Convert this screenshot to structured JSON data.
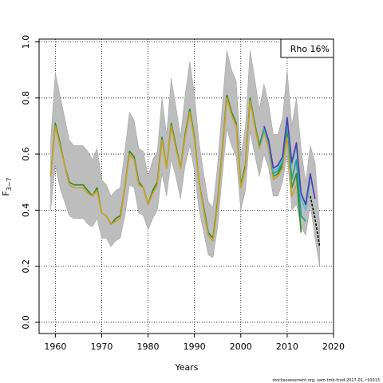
{
  "chart_data": {
    "type": "line",
    "title": "",
    "xlabel": "Years",
    "ylabel": "F",
    "ylabel_subscript": "3−7",
    "xlim": [
      1956.5,
      2020
    ],
    "ylim": [
      -0.04,
      1.01
    ],
    "xticks": [
      1960,
      1970,
      1980,
      1990,
      2000,
      2010,
      2020
    ],
    "yticks": [
      0.0,
      0.2,
      0.4,
      0.6,
      0.8,
      1.0
    ],
    "xtick_labels": [
      "1960",
      "1970",
      "1980",
      "1990",
      "2000",
      "2010",
      "2020"
    ],
    "ytick_labels": [
      "0.0",
      "0.2",
      "0.4",
      "0.6",
      "0.8",
      "1.0"
    ],
    "grid": true,
    "legend": {
      "placement": "top-right",
      "text": "Rho 16%"
    },
    "footer": "stockassessment.org, sam-tmb-fcod-2017-01, r10013",
    "band": {
      "x": [
        1959,
        1960,
        1961,
        1962,
        1963,
        1964,
        1965,
        1966,
        1967,
        1968,
        1969,
        1970,
        1971,
        1972,
        1973,
        1974,
        1975,
        1976,
        1977,
        1978,
        1979,
        1980,
        1981,
        1982,
        1983,
        1984,
        1985,
        1986,
        1987,
        1988,
        1989,
        1990,
        1991,
        1992,
        1993,
        1994,
        1995,
        1996,
        1997,
        1998,
        1999,
        2000,
        2001,
        2002,
        2003,
        2004,
        2005,
        2006,
        2007,
        2008,
        2009,
        2010,
        2011,
        2012,
        2013,
        2014,
        2015,
        2016,
        2017
      ],
      "upper": [
        0.65,
        0.89,
        0.81,
        0.73,
        0.65,
        0.63,
        0.63,
        0.63,
        0.61,
        0.58,
        0.62,
        0.51,
        0.49,
        0.45,
        0.47,
        0.48,
        0.61,
        0.75,
        0.72,
        0.62,
        0.61,
        0.52,
        0.58,
        0.61,
        0.8,
        0.67,
        0.87,
        0.77,
        0.66,
        0.81,
        0.93,
        0.81,
        0.64,
        0.53,
        0.43,
        0.41,
        0.56,
        0.77,
        0.97,
        0.9,
        0.86,
        0.59,
        0.7,
        0.97,
        0.87,
        0.76,
        0.85,
        0.78,
        0.67,
        0.67,
        0.73,
        0.9,
        0.7,
        0.8,
        0.62,
        0.5,
        0.63,
        0.57,
        0.35
      ],
      "lower": [
        0.4,
        0.56,
        0.48,
        0.43,
        0.38,
        0.37,
        0.37,
        0.37,
        0.35,
        0.34,
        0.37,
        0.3,
        0.3,
        0.27,
        0.29,
        0.3,
        0.38,
        0.49,
        0.48,
        0.39,
        0.38,
        0.33,
        0.37,
        0.4,
        0.53,
        0.45,
        0.58,
        0.52,
        0.44,
        0.56,
        0.63,
        0.54,
        0.4,
        0.32,
        0.24,
        0.23,
        0.34,
        0.52,
        0.69,
        0.63,
        0.59,
        0.4,
        0.47,
        0.68,
        0.6,
        0.52,
        0.6,
        0.55,
        0.45,
        0.45,
        0.5,
        0.6,
        0.4,
        0.42,
        0.34,
        0.31,
        0.42,
        0.3,
        0.2
      ]
    },
    "series": [
      {
        "color": "#2e8b2e",
        "x": [
          1959,
          1960,
          1961,
          1962,
          1963,
          1964,
          1965,
          1966,
          1967,
          1968,
          1969,
          1970,
          1971,
          1972,
          1973,
          1974,
          1975,
          1976,
          1977,
          1978,
          1979,
          1980,
          1981,
          1982,
          1983,
          1984,
          1985,
          1986,
          1987,
          1988,
          1989,
          1990,
          1991,
          1992,
          1993,
          1994,
          1995,
          1996,
          1997,
          1998,
          1999,
          2000,
          2001,
          2002,
          2003,
          2004,
          2005,
          2006,
          2007,
          2008,
          2009,
          2010,
          2011,
          2012,
          2013
        ],
        "values": [
          0.52,
          0.71,
          0.64,
          0.56,
          0.5,
          0.49,
          0.49,
          0.49,
          0.47,
          0.45,
          0.48,
          0.39,
          0.38,
          0.35,
          0.37,
          0.38,
          0.48,
          0.61,
          0.59,
          0.5,
          0.48,
          0.42,
          0.47,
          0.5,
          0.66,
          0.55,
          0.71,
          0.63,
          0.55,
          0.67,
          0.76,
          0.66,
          0.5,
          0.41,
          0.32,
          0.3,
          0.43,
          0.61,
          0.81,
          0.75,
          0.71,
          0.49,
          0.56,
          0.8,
          0.71,
          0.63,
          0.69,
          0.63,
          0.52,
          0.53,
          0.56,
          0.68,
          0.48,
          0.53,
          0.32
        ]
      },
      {
        "color": "#c9a227",
        "x": [
          1959,
          1960,
          1961,
          1962,
          1963,
          1964,
          1965,
          1966,
          1967,
          1968,
          1969,
          1970,
          1971,
          1972,
          1973,
          1974,
          1975,
          1976,
          1977,
          1978,
          1979,
          1980,
          1981,
          1982,
          1983,
          1984,
          1985,
          1986,
          1987,
          1988,
          1989,
          1990,
          1991,
          1992,
          1993,
          1994,
          1995,
          1996,
          1997,
          1998,
          1999,
          2000,
          2001,
          2002,
          2003,
          2004,
          2005,
          2006,
          2007,
          2008,
          2009,
          2010,
          2011,
          2012
        ],
        "values": [
          0.52,
          0.7,
          0.63,
          0.56,
          0.49,
          0.48,
          0.48,
          0.48,
          0.46,
          0.45,
          0.47,
          0.39,
          0.38,
          0.35,
          0.36,
          0.37,
          0.48,
          0.6,
          0.58,
          0.49,
          0.48,
          0.42,
          0.46,
          0.49,
          0.65,
          0.55,
          0.7,
          0.62,
          0.55,
          0.66,
          0.75,
          0.65,
          0.5,
          0.4,
          0.31,
          0.29,
          0.42,
          0.6,
          0.8,
          0.74,
          0.7,
          0.48,
          0.55,
          0.79,
          0.7,
          0.62,
          0.68,
          0.62,
          0.51,
          0.52,
          0.55,
          0.66,
          0.45,
          0.49
        ]
      },
      {
        "color": "#1a9e8f",
        "x": [
          2004,
          2005,
          2006,
          2007,
          2008,
          2009,
          2010,
          2011,
          2012,
          2013,
          2014
        ],
        "values": [
          0.63,
          0.69,
          0.64,
          0.53,
          0.54,
          0.57,
          0.71,
          0.51,
          0.58,
          0.38,
          0.36
        ]
      },
      {
        "color": "#5fb8d6",
        "x": [
          2005,
          2006,
          2007,
          2008,
          2009,
          2010,
          2011,
          2012,
          2013,
          2014,
          2015
        ],
        "values": [
          0.69,
          0.64,
          0.54,
          0.55,
          0.58,
          0.72,
          0.56,
          0.63,
          0.44,
          0.4,
          0.5
        ]
      },
      {
        "color": "#4a3fb0",
        "x": [
          2005,
          2006,
          2007,
          2008,
          2009,
          2010,
          2011,
          2012,
          2013,
          2014,
          2015,
          2016
        ],
        "values": [
          0.7,
          0.65,
          0.55,
          0.56,
          0.59,
          0.73,
          0.57,
          0.64,
          0.46,
          0.42,
          0.53,
          0.44
        ]
      },
      {
        "color": "#000000",
        "dashed": true,
        "x": [
          2015,
          2016,
          2017
        ],
        "values": [
          0.45,
          0.37,
          0.27
        ]
      }
    ]
  }
}
